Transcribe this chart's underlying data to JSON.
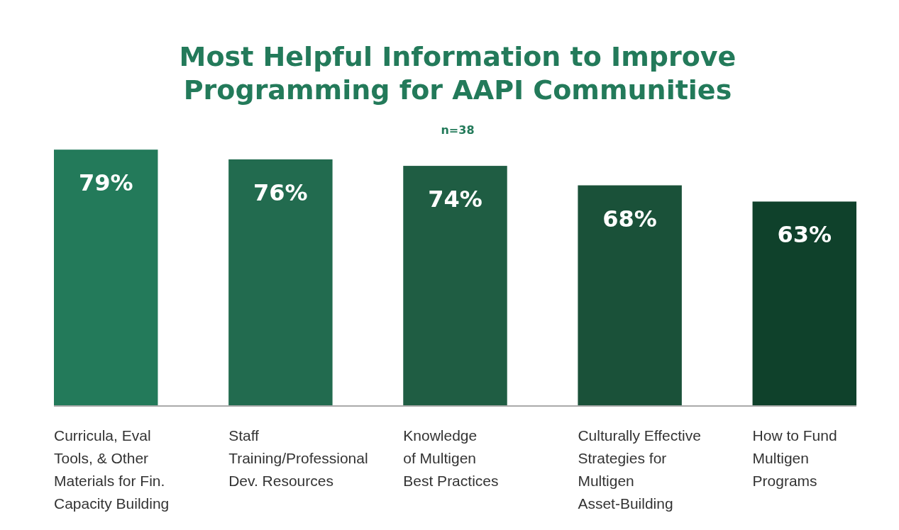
{
  "chart_data": {
    "type": "bar",
    "title": "Most Helpful Information to Improve Programming for AAPI Communities",
    "subtitle": "n=38",
    "categories": [
      "Curricula, Eval\nTools, & Other\nMaterials for Fin.\nCapacity Building",
      "Staff\nTraining/Professional\nDev. Resources",
      "Knowledge\nof Multigen\nBest Practices",
      "Culturally Effective\nStrategies for\nMultigen\nAsset-Building",
      "How to Fund\nMultigen\nPrograms"
    ],
    "values": [
      79,
      76,
      74,
      68,
      63
    ],
    "colors": [
      "#237a5a",
      "#226b4f",
      "#1f5d43",
      "#1a5139",
      "#0f412b"
    ],
    "value_labels": [
      "79%",
      "76%",
      "74%",
      "68%",
      "63%"
    ]
  }
}
